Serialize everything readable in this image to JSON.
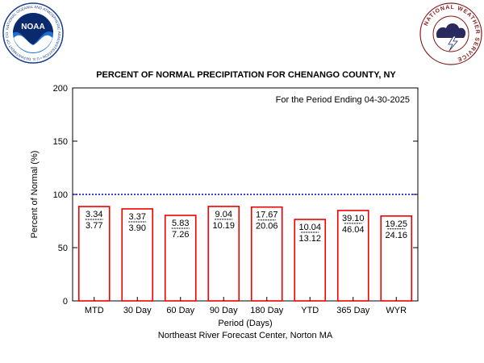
{
  "logos": {
    "noaa": {
      "text": "NOAA",
      "ring_text": "NATIONAL OCEANIC AND ATMOSPHERIC ADMINISTRATION • U.S. DEPARTMENT OF COMMERCE"
    },
    "nws": {
      "ring_text": "NATIONAL WEATHER SERVICE"
    }
  },
  "colors": {
    "bar_outline": "#ee0000",
    "normal_line": "#0000cc",
    "axis": "#000000"
  },
  "chart_data": {
    "type": "bar",
    "title": "PERCENT OF NORMAL PRECIPITATION FOR CHENANGO COUNTY, NY",
    "annotation": "For the Period Ending 04-30-2025",
    "xlabel": "Period (Days)",
    "ylabel": "Percent of Normal (%)",
    "footer": "Northeast River Forecast Center, Norton MA",
    "ylim": [
      0,
      200
    ],
    "yticks": [
      0,
      50,
      100,
      150,
      200
    ],
    "normal_line": 100,
    "grid": false,
    "categories": [
      "MTD",
      "30 Day",
      "60 Day",
      "90 Day",
      "180 Day",
      "YTD",
      "365 Day",
      "WYR"
    ],
    "values": [
      88.6,
      86.4,
      80.3,
      88.7,
      88.1,
      76.5,
      84.9,
      79.7
    ],
    "observed": [
      "3.34",
      "3.37",
      "5.83",
      "9.04",
      "17.67",
      "10.04",
      "39.10",
      "19.25"
    ],
    "normal": [
      "3.77",
      "3.90",
      "7.26",
      "10.19",
      "20.06",
      "13.12",
      "46.04",
      "24.16"
    ]
  }
}
